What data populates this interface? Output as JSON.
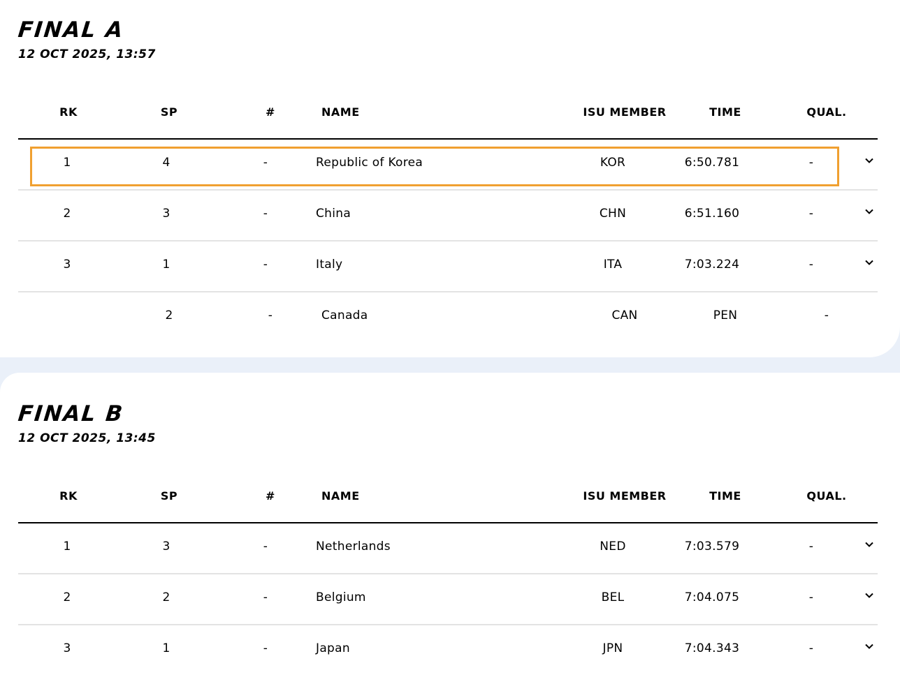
{
  "sections": [
    {
      "title": "FINAL A",
      "datetime": "12 OCT 2025, 13:57",
      "headers": [
        "RK",
        "SP",
        "#",
        "NAME",
        "ISU MEMBER",
        "TIME",
        "QUAL."
      ],
      "rows": [
        {
          "rk": "1",
          "sp": "4",
          "num": "-",
          "name": "Republic of Korea",
          "member": "KOR",
          "time": "6:50.781",
          "qual": "-",
          "expandable": true
        },
        {
          "rk": "2",
          "sp": "3",
          "num": "-",
          "name": "China",
          "member": "CHN",
          "time": "6:51.160",
          "qual": "-",
          "expandable": true
        },
        {
          "rk": "3",
          "sp": "1",
          "num": "-",
          "name": "Italy",
          "member": "ITA",
          "time": "7:03.224",
          "qual": "-",
          "expandable": true
        },
        {
          "rk": "",
          "sp": "2",
          "num": "-",
          "name": "Canada",
          "member": "CAN",
          "time": "PEN",
          "qual": "-",
          "expandable": false
        }
      ]
    },
    {
      "title": "FINAL B",
      "datetime": "12 OCT 2025, 13:45",
      "headers": [
        "RK",
        "SP",
        "#",
        "NAME",
        "ISU MEMBER",
        "TIME",
        "QUAL."
      ],
      "rows": [
        {
          "rk": "1",
          "sp": "3",
          "num": "-",
          "name": "Netherlands",
          "member": "NED",
          "time": "7:03.579",
          "qual": "-",
          "expandable": true
        },
        {
          "rk": "2",
          "sp": "2",
          "num": "-",
          "name": "Belgium",
          "member": "BEL",
          "time": "7:04.075",
          "qual": "-",
          "expandable": true
        },
        {
          "rk": "3",
          "sp": "1",
          "num": "-",
          "name": "Japan",
          "member": "JPN",
          "time": "7:04.343",
          "qual": "-",
          "expandable": true
        }
      ]
    }
  ],
  "colors": {
    "highlight": "#f0a030",
    "page_background": "#eaf0f9",
    "divider": "#e3e3e3"
  },
  "icons": {
    "expand": "chevron-down-icon"
  }
}
